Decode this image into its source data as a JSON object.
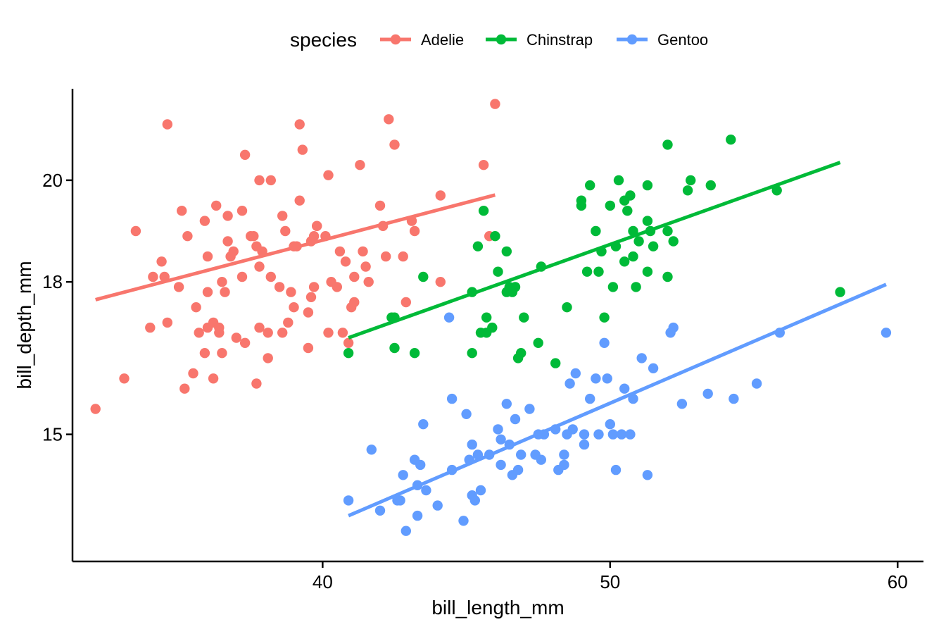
{
  "chart_data": {
    "type": "scatter",
    "title": "",
    "xlabel": "bill_length_mm",
    "ylabel": "bill_depth_mm",
    "xlim": [
      31.3,
      60.9
    ],
    "ylim": [
      12.5,
      21.8
    ],
    "x_ticks": [
      40,
      50,
      60
    ],
    "y_ticks": [
      15,
      18,
      20
    ],
    "x_tick_labels": [
      "40",
      "50",
      "60"
    ],
    "y_tick_labels": [
      "15",
      "18",
      "20"
    ],
    "grid": false,
    "legend": {
      "title": "species",
      "position": "top"
    },
    "series": [
      {
        "name": "Adelie",
        "color": "#F8766D",
        "trend": {
          "x": [
            32.1,
            46.0
          ],
          "y": [
            17.65,
            19.71
          ]
        },
        "points": [
          [
            32.1,
            15.5
          ],
          [
            33.1,
            16.1
          ],
          [
            33.5,
            19.0
          ],
          [
            34.0,
            17.1
          ],
          [
            34.1,
            18.1
          ],
          [
            34.4,
            18.4
          ],
          [
            34.5,
            18.1
          ],
          [
            34.6,
            21.1
          ],
          [
            34.6,
            17.2
          ],
          [
            35.0,
            17.9
          ],
          [
            35.1,
            19.4
          ],
          [
            35.2,
            15.9
          ],
          [
            35.3,
            18.9
          ],
          [
            35.5,
            16.2
          ],
          [
            35.6,
            17.5
          ],
          [
            35.7,
            17.0
          ],
          [
            35.9,
            16.6
          ],
          [
            35.9,
            19.2
          ],
          [
            36.0,
            17.8
          ],
          [
            36.0,
            17.1
          ],
          [
            36.0,
            18.5
          ],
          [
            36.2,
            17.2
          ],
          [
            36.2,
            16.1
          ],
          [
            36.3,
            19.5
          ],
          [
            36.4,
            17.0
          ],
          [
            36.4,
            17.1
          ],
          [
            36.5,
            16.6
          ],
          [
            36.5,
            18.0
          ],
          [
            36.6,
            17.8
          ],
          [
            36.7,
            18.8
          ],
          [
            36.7,
            19.3
          ],
          [
            36.8,
            18.5
          ],
          [
            36.9,
            18.6
          ],
          [
            37.0,
            16.9
          ],
          [
            37.2,
            18.1
          ],
          [
            37.2,
            19.4
          ],
          [
            37.3,
            16.8
          ],
          [
            37.3,
            20.5
          ],
          [
            37.5,
            18.9
          ],
          [
            37.6,
            18.9
          ],
          [
            37.7,
            18.7
          ],
          [
            37.7,
            16.0
          ],
          [
            37.8,
            17.1
          ],
          [
            37.8,
            18.3
          ],
          [
            37.8,
            20.0
          ],
          [
            37.9,
            18.6
          ],
          [
            38.1,
            16.5
          ],
          [
            38.1,
            17.0
          ],
          [
            38.2,
            18.1
          ],
          [
            38.2,
            20.0
          ],
          [
            38.5,
            17.9
          ],
          [
            38.6,
            17.0
          ],
          [
            38.6,
            19.3
          ],
          [
            38.7,
            19.0
          ],
          [
            38.8,
            17.2
          ],
          [
            38.9,
            17.8
          ],
          [
            39.0,
            17.5
          ],
          [
            39.0,
            18.7
          ],
          [
            39.1,
            18.7
          ],
          [
            39.2,
            19.6
          ],
          [
            39.2,
            21.1
          ],
          [
            39.3,
            20.6
          ],
          [
            39.5,
            16.7
          ],
          [
            39.5,
            17.4
          ],
          [
            39.6,
            17.7
          ],
          [
            39.6,
            18.8
          ],
          [
            39.7,
            18.9
          ],
          [
            39.7,
            17.9
          ],
          [
            39.8,
            19.1
          ],
          [
            39.8,
            19.1
          ],
          [
            40.1,
            18.9
          ],
          [
            40.2,
            17.0
          ],
          [
            40.2,
            20.1
          ],
          [
            40.3,
            18.0
          ],
          [
            40.5,
            17.9
          ],
          [
            40.6,
            18.6
          ],
          [
            40.7,
            17.0
          ],
          [
            40.8,
            18.4
          ],
          [
            40.9,
            16.8
          ],
          [
            41.0,
            17.5
          ],
          [
            41.1,
            17.6
          ],
          [
            41.1,
            18.1
          ],
          [
            41.3,
            20.3
          ],
          [
            41.4,
            18.6
          ],
          [
            41.5,
            18.3
          ],
          [
            41.6,
            18.0
          ],
          [
            42.0,
            19.5
          ],
          [
            42.1,
            19.1
          ],
          [
            42.2,
            18.5
          ],
          [
            42.3,
            21.2
          ],
          [
            42.5,
            20.7
          ],
          [
            42.8,
            18.5
          ],
          [
            42.9,
            17.6
          ],
          [
            43.1,
            19.2
          ],
          [
            43.2,
            19.0
          ],
          [
            44.1,
            18.0
          ],
          [
            44.1,
            19.7
          ],
          [
            45.6,
            20.3
          ],
          [
            45.8,
            18.9
          ],
          [
            46.0,
            21.5
          ]
        ]
      },
      {
        "name": "Chinstrap",
        "color": "#00BA38",
        "trend": {
          "x": [
            40.9,
            58.0
          ],
          "y": [
            16.9,
            20.35
          ]
        },
        "points": [
          [
            40.9,
            16.6
          ],
          [
            42.4,
            17.3
          ],
          [
            42.5,
            16.7
          ],
          [
            42.5,
            17.3
          ],
          [
            43.2,
            16.6
          ],
          [
            43.5,
            18.1
          ],
          [
            45.2,
            16.6
          ],
          [
            45.2,
            17.8
          ],
          [
            45.4,
            18.7
          ],
          [
            45.5,
            17.0
          ],
          [
            45.6,
            19.4
          ],
          [
            45.7,
            17.0
          ],
          [
            45.7,
            17.3
          ],
          [
            45.9,
            17.1
          ],
          [
            46.0,
            18.9
          ],
          [
            46.1,
            18.2
          ],
          [
            46.4,
            17.8
          ],
          [
            46.4,
            18.6
          ],
          [
            46.5,
            17.9
          ],
          [
            46.6,
            17.8
          ],
          [
            46.7,
            17.9
          ],
          [
            46.8,
            16.5
          ],
          [
            46.9,
            16.6
          ],
          [
            47.0,
            17.3
          ],
          [
            47.5,
            16.8
          ],
          [
            47.6,
            18.3
          ],
          [
            48.1,
            16.4
          ],
          [
            48.5,
            17.5
          ],
          [
            49.0,
            19.5
          ],
          [
            49.0,
            19.6
          ],
          [
            49.2,
            18.2
          ],
          [
            49.3,
            19.9
          ],
          [
            49.5,
            19.0
          ],
          [
            49.6,
            18.2
          ],
          [
            49.7,
            18.6
          ],
          [
            49.8,
            17.3
          ],
          [
            50.0,
            19.5
          ],
          [
            50.1,
            17.9
          ],
          [
            50.2,
            18.7
          ],
          [
            50.3,
            20.0
          ],
          [
            50.5,
            19.6
          ],
          [
            50.5,
            18.4
          ],
          [
            50.6,
            19.4
          ],
          [
            50.7,
            19.7
          ],
          [
            50.8,
            19.0
          ],
          [
            50.8,
            18.5
          ],
          [
            50.9,
            17.9
          ],
          [
            51.0,
            18.8
          ],
          [
            51.3,
            19.2
          ],
          [
            51.3,
            19.9
          ],
          [
            51.3,
            18.2
          ],
          [
            51.4,
            19.0
          ],
          [
            51.5,
            18.7
          ],
          [
            52.0,
            18.1
          ],
          [
            52.0,
            19.0
          ],
          [
            52.0,
            20.7
          ],
          [
            52.2,
            18.8
          ],
          [
            52.7,
            19.8
          ],
          [
            52.8,
            20.0
          ],
          [
            53.5,
            19.9
          ],
          [
            54.2,
            20.8
          ],
          [
            55.8,
            19.8
          ],
          [
            58.0,
            17.8
          ]
        ]
      },
      {
        "name": "Gentoo",
        "color": "#619CFF",
        "trend": {
          "x": [
            40.9,
            59.6
          ],
          "y": [
            13.4,
            17.95
          ]
        },
        "points": [
          [
            40.9,
            13.7
          ],
          [
            41.7,
            14.7
          ],
          [
            42.0,
            13.5
          ],
          [
            42.6,
            13.7
          ],
          [
            42.7,
            13.7
          ],
          [
            42.8,
            14.2
          ],
          [
            42.9,
            13.1
          ],
          [
            43.2,
            14.5
          ],
          [
            43.3,
            13.4
          ],
          [
            43.3,
            14.0
          ],
          [
            43.4,
            14.4
          ],
          [
            43.5,
            15.2
          ],
          [
            43.6,
            13.9
          ],
          [
            44.0,
            13.6
          ],
          [
            44.4,
            17.3
          ],
          [
            44.5,
            14.3
          ],
          [
            44.5,
            15.7
          ],
          [
            44.9,
            13.3
          ],
          [
            45.0,
            15.4
          ],
          [
            45.1,
            14.5
          ],
          [
            45.2,
            13.8
          ],
          [
            45.2,
            14.8
          ],
          [
            45.3,
            13.7
          ],
          [
            45.4,
            14.6
          ],
          [
            45.5,
            13.9
          ],
          [
            45.8,
            14.6
          ],
          [
            46.1,
            15.1
          ],
          [
            46.2,
            14.4
          ],
          [
            46.2,
            14.9
          ],
          [
            46.4,
            15.6
          ],
          [
            46.5,
            14.8
          ],
          [
            46.6,
            14.2
          ],
          [
            46.7,
            15.3
          ],
          [
            46.8,
            14.3
          ],
          [
            46.9,
            14.6
          ],
          [
            47.2,
            15.5
          ],
          [
            47.4,
            14.6
          ],
          [
            47.5,
            15.0
          ],
          [
            47.6,
            14.5
          ],
          [
            47.7,
            15.0
          ],
          [
            48.1,
            15.1
          ],
          [
            48.2,
            14.3
          ],
          [
            48.4,
            14.4
          ],
          [
            48.4,
            14.6
          ],
          [
            48.5,
            15.0
          ],
          [
            48.6,
            16.0
          ],
          [
            48.7,
            15.1
          ],
          [
            48.8,
            16.2
          ],
          [
            49.1,
            14.8
          ],
          [
            49.1,
            15.0
          ],
          [
            49.3,
            15.7
          ],
          [
            49.5,
            16.1
          ],
          [
            49.6,
            15.0
          ],
          [
            49.8,
            16.8
          ],
          [
            49.9,
            16.1
          ],
          [
            50.0,
            15.2
          ],
          [
            50.1,
            15.0
          ],
          [
            50.2,
            14.3
          ],
          [
            50.4,
            15.0
          ],
          [
            50.5,
            15.9
          ],
          [
            50.7,
            15.0
          ],
          [
            50.8,
            15.7
          ],
          [
            51.1,
            16.5
          ],
          [
            51.3,
            14.2
          ],
          [
            51.5,
            16.3
          ],
          [
            52.1,
            17.0
          ],
          [
            52.2,
            17.1
          ],
          [
            52.5,
            15.6
          ],
          [
            53.4,
            15.8
          ],
          [
            54.3,
            15.7
          ],
          [
            55.1,
            16.0
          ],
          [
            55.9,
            17.0
          ],
          [
            59.6,
            17.0
          ]
        ]
      }
    ]
  }
}
